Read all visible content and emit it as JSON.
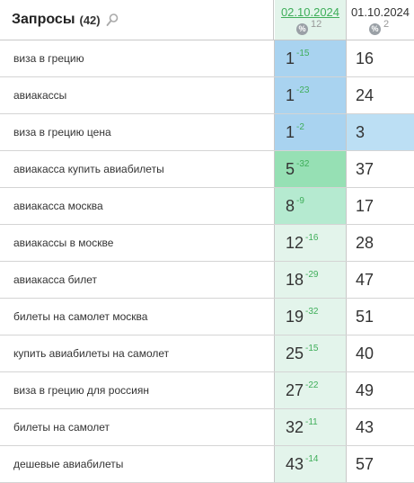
{
  "header": {
    "title": "Запросы",
    "count": "(42)",
    "date1": "02.10.2024",
    "date1_pct": "12",
    "date2": "01.10.2024",
    "date2_pct": "2",
    "pct_symbol": "%"
  },
  "colors": {
    "top1": "#a9d3f0",
    "top3": "#bcdff4",
    "top5": "#96e0b4",
    "top10": "#b5ead0",
    "top50": "#e3f4eb",
    "delta": "#3fae5a"
  },
  "rows": [
    {
      "query": "виза в грецию",
      "pos1": "1",
      "delta1": "-15",
      "pos2": "16",
      "color1": "#a9d3f0",
      "color2": "#ffffff"
    },
    {
      "query": "авиакассы",
      "pos1": "1",
      "delta1": "-23",
      "pos2": "24",
      "color1": "#a9d3f0",
      "color2": "#ffffff"
    },
    {
      "query": "виза в грецию цена",
      "pos1": "1",
      "delta1": "-2",
      "pos2": "3",
      "color1": "#a9d3f0",
      "color2": "#bcdff4"
    },
    {
      "query": "авиакасса купить авиабилеты",
      "pos1": "5",
      "delta1": "-32",
      "pos2": "37",
      "color1": "#96e0b4",
      "color2": "#ffffff"
    },
    {
      "query": "авиакасса москва",
      "pos1": "8",
      "delta1": "-9",
      "pos2": "17",
      "color1": "#b5ead0",
      "color2": "#ffffff"
    },
    {
      "query": "авиакассы в москве",
      "pos1": "12",
      "delta1": "-16",
      "pos2": "28",
      "color1": "#e3f4eb",
      "color2": "#ffffff"
    },
    {
      "query": "авиакасса билет",
      "pos1": "18",
      "delta1": "-29",
      "pos2": "47",
      "color1": "#e3f4eb",
      "color2": "#ffffff"
    },
    {
      "query": "билеты на самолет москва",
      "pos1": "19",
      "delta1": "-32",
      "pos2": "51",
      "color1": "#e3f4eb",
      "color2": "#ffffff"
    },
    {
      "query": "купить авиабилеты на самолет",
      "pos1": "25",
      "delta1": "-15",
      "pos2": "40",
      "color1": "#e3f4eb",
      "color2": "#ffffff"
    },
    {
      "query": "виза в грецию для россиян",
      "pos1": "27",
      "delta1": "-22",
      "pos2": "49",
      "color1": "#e3f4eb",
      "color2": "#ffffff"
    },
    {
      "query": "билеты на самолет",
      "pos1": "32",
      "delta1": "-11",
      "pos2": "43",
      "color1": "#e3f4eb",
      "color2": "#ffffff"
    },
    {
      "query": "дешевые авиабилеты",
      "pos1": "43",
      "delta1": "-14",
      "pos2": "57",
      "color1": "#e3f4eb",
      "color2": "#ffffff"
    }
  ]
}
